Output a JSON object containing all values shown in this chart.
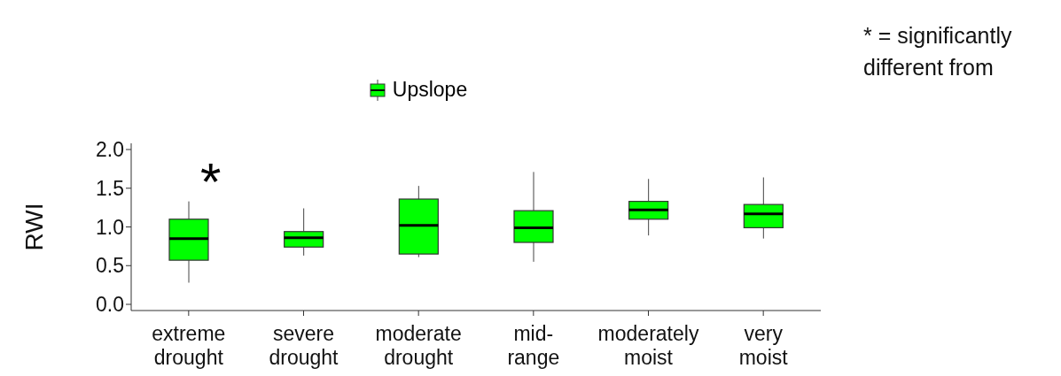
{
  "chart_data": {
    "type": "box",
    "ylabel": "RWI",
    "categories": [
      "extreme drought",
      "severe drought",
      "moderate drought",
      "mid-range",
      "moderately moist",
      "very moist"
    ],
    "series": [
      {
        "name": "Upslope",
        "color": "#00ff00",
        "boxes": [
          {
            "low": 0.28,
            "q1": 0.57,
            "median": 0.85,
            "q3": 1.1,
            "high": 1.33
          },
          {
            "low": 0.63,
            "q1": 0.74,
            "median": 0.86,
            "q3": 0.94,
            "high": 1.24
          },
          {
            "low": 0.61,
            "q1": 0.65,
            "median": 1.02,
            "q3": 1.36,
            "high": 1.53
          },
          {
            "low": 0.55,
            "q1": 0.8,
            "median": 0.99,
            "q3": 1.21,
            "high": 1.71
          },
          {
            "low": 0.89,
            "q1": 1.1,
            "median": 1.22,
            "q3": 1.33,
            "high": 1.62
          },
          {
            "low": 0.85,
            "q1": 0.99,
            "median": 1.17,
            "q3": 1.29,
            "high": 1.64
          }
        ]
      }
    ],
    "ylim": [
      -0.08,
      2.08
    ],
    "yticks": [
      {
        "value": 0,
        "label": "0.0"
      },
      {
        "value": 0.5,
        "label": "0.5"
      },
      {
        "value": 1,
        "label": "1.0"
      },
      {
        "value": 1.5,
        "label": "1.5"
      },
      {
        "value": 2,
        "label": "2.0"
      }
    ],
    "grid": false,
    "legend": "top",
    "annotations": [
      "*",
      "* = significantly different from"
    ]
  }
}
